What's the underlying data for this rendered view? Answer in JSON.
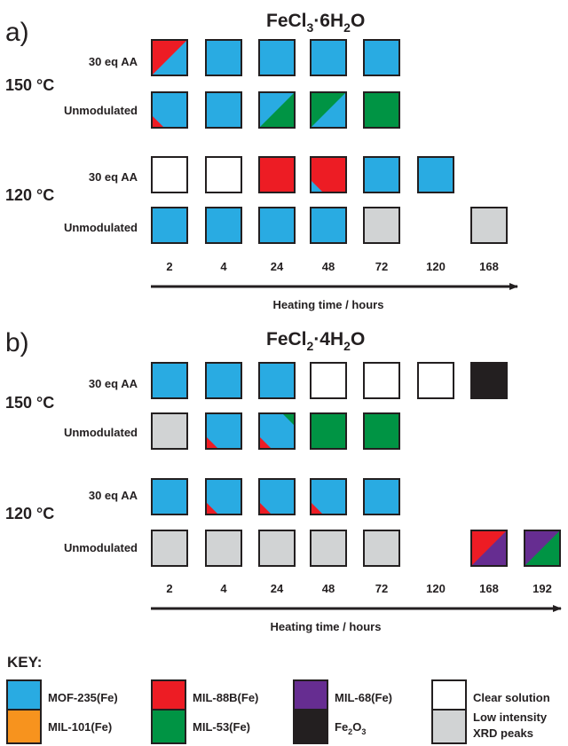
{
  "colors": {
    "mof235": "#29abe2",
    "mil88b": "#ed1c24",
    "mil68": "#662d91",
    "clear": "#ffffff",
    "mil101": "#f7931e",
    "mil53": "#009444",
    "fe2o3": "#231f20",
    "low": "#d1d3d4"
  },
  "panel_a": {
    "label": "a)",
    "title_base": "FeCl",
    "title_sub": "3",
    "title_rest": "·6H",
    "title_sub2": "2",
    "title_end": "O",
    "temps": [
      {
        "temp": "150 °C",
        "rows": [
          {
            "label": "30 eq AA",
            "cells": [
              [
                "mil88b",
                "mof235"
              ],
              [
                "mof235"
              ],
              [
                "mof235"
              ],
              [
                "mof235"
              ],
              [
                "mof235"
              ],
              null,
              null
            ]
          },
          {
            "label": "Unmodulated",
            "cells": [
              [
                "mof235",
                "mil88b-small"
              ],
              [
                "mof235"
              ],
              [
                "mof235",
                "mil53"
              ],
              [
                "mil53",
                "mof235"
              ],
              [
                "mil53"
              ],
              null,
              null
            ]
          }
        ]
      },
      {
        "temp": "120 °C",
        "rows": [
          {
            "label": "30 eq AA",
            "cells": [
              [
                "clear"
              ],
              [
                "clear"
              ],
              [
                "mil88b"
              ],
              [
                "mil88b",
                "mof235-small"
              ],
              [
                "mof235"
              ],
              [
                "mof235"
              ],
              null
            ]
          },
          {
            "label": "Unmodulated",
            "cells": [
              [
                "mof235"
              ],
              [
                "mof235"
              ],
              [
                "mof235"
              ],
              [
                "mof235"
              ],
              [
                "low"
              ],
              null,
              [
                "low"
              ]
            ]
          }
        ]
      }
    ],
    "times": [
      "2",
      "4",
      "24",
      "48",
      "72",
      "120",
      "168"
    ],
    "axis_label": "Heating time / hours"
  },
  "panel_b": {
    "label": "b)",
    "title_base": "FeCl",
    "title_sub": "2",
    "title_rest": "·4H",
    "title_sub2": "2",
    "title_end": "O",
    "temps": [
      {
        "temp": "150 °C",
        "rows": [
          {
            "label": "30 eq AA",
            "cells": [
              [
                "mof235"
              ],
              [
                "mof235"
              ],
              [
                "mof235"
              ],
              [
                "clear"
              ],
              [
                "clear"
              ],
              [
                "clear"
              ],
              [
                "fe2o3"
              ],
              null
            ]
          },
          {
            "label": "Unmodulated",
            "cells": [
              [
                "low"
              ],
              [
                "mof235",
                "mil88b-small"
              ],
              [
                "mof235",
                "mil88b-small",
                "mil53-tr"
              ],
              [
                "mil53"
              ],
              [
                "mil53"
              ],
              null,
              null,
              null
            ]
          }
        ]
      },
      {
        "temp": "120 °C",
        "rows": [
          {
            "label": "30 eq AA",
            "cells": [
              [
                "mof235"
              ],
              [
                "mof235",
                "mil88b-small"
              ],
              [
                "mof235",
                "mil88b-small"
              ],
              [
                "mof235",
                "mil88b-small"
              ],
              [
                "mof235"
              ],
              null,
              null,
              null
            ]
          },
          {
            "label": "Unmodulated",
            "cells": [
              [
                "low"
              ],
              [
                "low"
              ],
              [
                "low"
              ],
              [
                "low"
              ],
              [
                "low"
              ],
              null,
              [
                "mil88b",
                "mil68"
              ],
              [
                "mil68",
                "mil53"
              ]
            ]
          }
        ]
      }
    ],
    "times": [
      "2",
      "4",
      "24",
      "48",
      "72",
      "120",
      "168",
      "192"
    ],
    "axis_label": "Heating time / hours"
  },
  "key": {
    "title": "KEY:",
    "items": [
      {
        "color": "mof235",
        "label": "MOF-235(Fe)"
      },
      {
        "color": "mil88b",
        "label": "MIL-88B(Fe)"
      },
      {
        "color": "mil68",
        "label": "MIL-68(Fe)"
      },
      {
        "color": "clear",
        "label": "Clear solution"
      },
      {
        "color": "mil101",
        "label": "MIL-101(Fe)"
      },
      {
        "color": "mil53",
        "label": "MIL-53(Fe)"
      },
      {
        "color": "fe2o3",
        "label_base": "Fe",
        "label_sub": "2",
        "label_mid": "O",
        "label_sub2": "3"
      },
      {
        "color": "low",
        "label_line1": "Low intensity",
        "label_line2": "XRD peaks"
      }
    ]
  }
}
